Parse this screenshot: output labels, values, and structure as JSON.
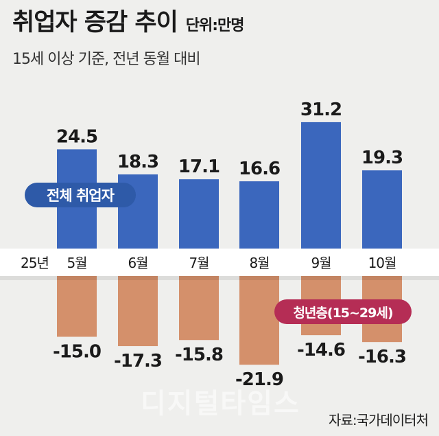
{
  "header": {
    "title": "취업자 증감 추이",
    "unit": "단위:만명",
    "subtitle": "15세 이상 기준, 전년 동월 대비"
  },
  "source": "자료:국가데이터처",
  "watermark": "디지털타임스",
  "colors": {
    "positive": "#3b67bd",
    "negative": "#d4906b",
    "label_total_bg": "#2e5aa8",
    "label_youth_bg": "#b52d55",
    "axis_band": "#ffffff"
  },
  "chart_data": {
    "type": "bar",
    "categories": [
      "5월",
      "6월",
      "7월",
      "8월",
      "9월",
      "10월"
    ],
    "year_label": "25년",
    "series": [
      {
        "name": "전체 취업자",
        "values": [
          24.5,
          18.3,
          17.1,
          16.6,
          31.2,
          19.3
        ]
      },
      {
        "name": "청년층(15~29세)",
        "values": [
          -15.0,
          -17.3,
          -15.8,
          -21.9,
          -14.6,
          -16.3
        ]
      }
    ],
    "value_labels_top": [
      "24.5",
      "18.3",
      "17.1",
      "16.6",
      "31.2",
      "19.3"
    ],
    "value_labels_bottom": [
      "-15.0",
      "-17.3",
      "-15.8",
      "-21.9",
      "-14.6",
      "-16.3"
    ]
  }
}
